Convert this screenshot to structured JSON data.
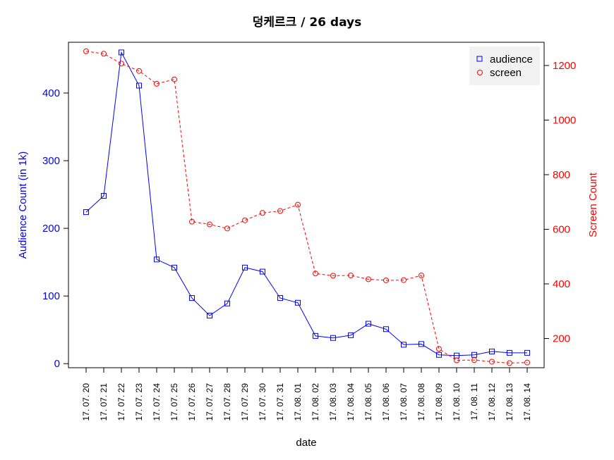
{
  "chart_data": {
    "type": "line",
    "title": "덩케르크 / 26 days",
    "xlabel": "date",
    "categories": [
      "17. 07. 20",
      "17. 07. 21",
      "17. 07. 22",
      "17. 07. 23",
      "17. 07. 24",
      "17. 07. 25",
      "17. 07. 26",
      "17. 07. 27",
      "17. 07. 28",
      "17. 07. 29",
      "17. 07. 30",
      "17. 07. 31",
      "17. 08. 01",
      "17. 08. 02",
      "17. 08. 03",
      "17. 08. 04",
      "17. 08. 05",
      "17. 08. 06",
      "17. 08. 07",
      "17. 08. 08",
      "17. 08. 09",
      "17. 08. 10",
      "17. 08. 11",
      "17. 08. 12",
      "17. 08. 13",
      "17. 08. 14"
    ],
    "left_axis": {
      "label": "Audience Count (in 1k)",
      "ylim": [
        -6,
        475
      ],
      "ticks": [
        0,
        100,
        200,
        300,
        400
      ],
      "color": "#0000ff"
    },
    "right_axis": {
      "label": "Screen Count",
      "ylim": [
        93,
        1285
      ],
      "ticks": [
        200,
        400,
        600,
        800,
        1000,
        1200
      ],
      "color": "#ff0000"
    },
    "series": [
      {
        "name": "audience",
        "axis": "left",
        "color": "#0000ff",
        "line": "solid",
        "marker": "square",
        "values": [
          224,
          248,
          460,
          411,
          154,
          142,
          97,
          71,
          89,
          142,
          136,
          97,
          90,
          41,
          38,
          42,
          59,
          51,
          28,
          29,
          13,
          12,
          13,
          18,
          16,
          16
        ]
      },
      {
        "name": "screen",
        "axis": "right",
        "color": "#ff0000",
        "line": "dashed",
        "marker": "circle",
        "values": [
          1252,
          1243,
          1207,
          1180,
          1133,
          1149,
          628,
          618,
          603,
          633,
          660,
          667,
          690,
          438,
          430,
          431,
          417,
          413,
          414,
          431,
          162,
          120,
          121,
          115,
          110,
          112
        ]
      }
    ],
    "legend": {
      "position": "top-right",
      "entries": [
        "audience",
        "screen"
      ]
    },
    "grid": false
  }
}
